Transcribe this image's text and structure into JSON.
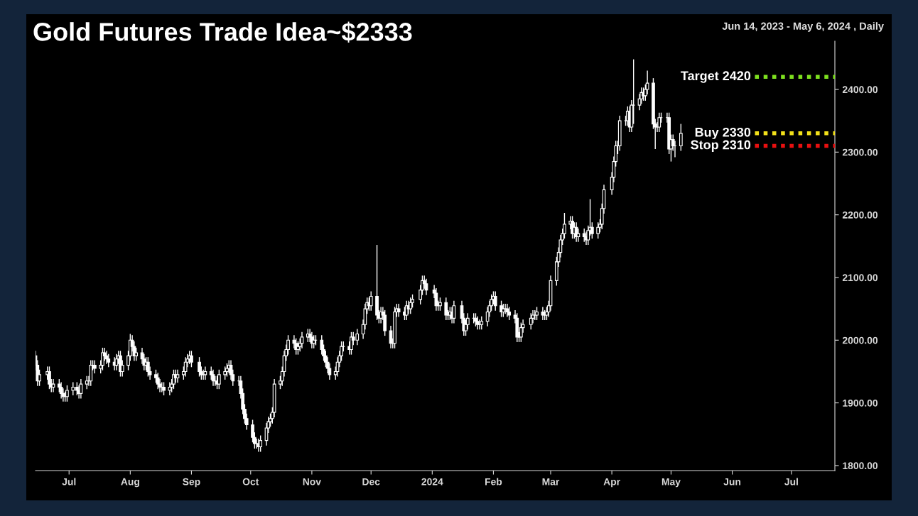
{
  "chart_data": {
    "type": "candlestick",
    "title": "Gold Futures Trade Idea~$2333",
    "subtitle": "Jun 14, 2023 - May 6, 2024 , Daily",
    "color": "#ffffff",
    "grid": false,
    "legend": false,
    "xlim": [
      "2023-06-14",
      "2024-07-23"
    ],
    "xticks": [
      {
        "value": "2023-07-01",
        "label": "Jul"
      },
      {
        "value": "2023-08-01",
        "label": "Aug"
      },
      {
        "value": "2023-09-01",
        "label": "Sep"
      },
      {
        "value": "2023-10-01",
        "label": "Oct"
      },
      {
        "value": "2023-11-01",
        "label": "Nov"
      },
      {
        "value": "2023-12-01",
        "label": "Dec"
      },
      {
        "value": "2024-01-01",
        "label": "2024"
      },
      {
        "value": "2024-02-01",
        "label": "Feb"
      },
      {
        "value": "2024-03-01",
        "label": "Mar"
      },
      {
        "value": "2024-04-01",
        "label": "Apr"
      },
      {
        "value": "2024-05-01",
        "label": "May"
      },
      {
        "value": "2024-06-01",
        "label": "Jun"
      },
      {
        "value": "2024-07-01",
        "label": "Jul"
      }
    ],
    "ylim": [
      1792,
      2477
    ],
    "yticks": [
      {
        "value": 1800,
        "label": "1800.00"
      },
      {
        "value": 1900,
        "label": "1900.00"
      },
      {
        "value": 2000,
        "label": "2000.00"
      },
      {
        "value": 2100,
        "label": "2100.00"
      },
      {
        "value": 2200,
        "label": "2200.00"
      },
      {
        "value": 2300,
        "label": "2300.00"
      },
      {
        "value": 2400,
        "label": "2400.00"
      }
    ],
    "ref_lines": [
      {
        "axis": "y",
        "value": 2420,
        "label": "Target 2420",
        "color": "#7ee01f",
        "line_style": "dotted"
      },
      {
        "axis": "y",
        "value": 2330,
        "label": "Buy 2330",
        "color": "#f2e01a",
        "line_style": "dotted"
      },
      {
        "axis": "y",
        "value": 2310,
        "label": "Stop 2310",
        "color": "#e81010",
        "line_style": "dotted"
      }
    ],
    "x": [
      "2023-06-14",
      "2023-06-15",
      "2023-06-16",
      "2023-06-20",
      "2023-06-21",
      "2023-06-22",
      "2023-06-23",
      "2023-06-26",
      "2023-06-27",
      "2023-06-28",
      "2023-06-29",
      "2023-06-30",
      "2023-07-03",
      "2023-07-05",
      "2023-07-06",
      "2023-07-07",
      "2023-07-10",
      "2023-07-11",
      "2023-07-12",
      "2023-07-13",
      "2023-07-14",
      "2023-07-17",
      "2023-07-18",
      "2023-07-19",
      "2023-07-20",
      "2023-07-21",
      "2023-07-24",
      "2023-07-25",
      "2023-07-26",
      "2023-07-27",
      "2023-07-28",
      "2023-07-31",
      "2023-08-01",
      "2023-08-02",
      "2023-08-03",
      "2023-08-04",
      "2023-08-07",
      "2023-08-08",
      "2023-08-09",
      "2023-08-10",
      "2023-08-11",
      "2023-08-14",
      "2023-08-15",
      "2023-08-16",
      "2023-08-17",
      "2023-08-18",
      "2023-08-21",
      "2023-08-22",
      "2023-08-23",
      "2023-08-24",
      "2023-08-25",
      "2023-08-28",
      "2023-08-29",
      "2023-08-30",
      "2023-08-31",
      "2023-09-01",
      "2023-09-05",
      "2023-09-06",
      "2023-09-07",
      "2023-09-08",
      "2023-09-11",
      "2023-09-12",
      "2023-09-13",
      "2023-09-14",
      "2023-09-15",
      "2023-09-18",
      "2023-09-19",
      "2023-09-20",
      "2023-09-21",
      "2023-09-22",
      "2023-09-25",
      "2023-09-26",
      "2023-09-27",
      "2023-09-28",
      "2023-09-29",
      "2023-10-02",
      "2023-10-03",
      "2023-10-04",
      "2023-10-05",
      "2023-10-06",
      "2023-10-09",
      "2023-10-10",
      "2023-10-11",
      "2023-10-12",
      "2023-10-13",
      "2023-10-16",
      "2023-10-17",
      "2023-10-18",
      "2023-10-19",
      "2023-10-20",
      "2023-10-23",
      "2023-10-24",
      "2023-10-25",
      "2023-10-26",
      "2023-10-27",
      "2023-10-30",
      "2023-10-31",
      "2023-11-01",
      "2023-11-02",
      "2023-11-03",
      "2023-11-06",
      "2023-11-07",
      "2023-11-08",
      "2023-11-09",
      "2023-11-10",
      "2023-11-13",
      "2023-11-14",
      "2023-11-15",
      "2023-11-16",
      "2023-11-17",
      "2023-11-20",
      "2023-11-21",
      "2023-11-22",
      "2023-11-24",
      "2023-11-27",
      "2023-11-28",
      "2023-11-29",
      "2023-11-30",
      "2023-12-01",
      "2023-12-04",
      "2023-12-05",
      "2023-12-06",
      "2023-12-07",
      "2023-12-08",
      "2023-12-11",
      "2023-12-12",
      "2023-12-13",
      "2023-12-14",
      "2023-12-15",
      "2023-12-18",
      "2023-12-19",
      "2023-12-20",
      "2023-12-21",
      "2023-12-22",
      "2023-12-26",
      "2023-12-27",
      "2023-12-28",
      "2023-12-29",
      "2024-01-02",
      "2024-01-03",
      "2024-01-04",
      "2024-01-05",
      "2024-01-08",
      "2024-01-09",
      "2024-01-10",
      "2024-01-11",
      "2024-01-12",
      "2024-01-16",
      "2024-01-17",
      "2024-01-18",
      "2024-01-19",
      "2024-01-22",
      "2024-01-23",
      "2024-01-24",
      "2024-01-25",
      "2024-01-26",
      "2024-01-29",
      "2024-01-30",
      "2024-01-31",
      "2024-02-01",
      "2024-02-02",
      "2024-02-05",
      "2024-02-06",
      "2024-02-07",
      "2024-02-08",
      "2024-02-09",
      "2024-02-12",
      "2024-02-13",
      "2024-02-14",
      "2024-02-15",
      "2024-02-16",
      "2024-02-20",
      "2024-02-21",
      "2024-02-22",
      "2024-02-23",
      "2024-02-26",
      "2024-02-27",
      "2024-02-28",
      "2024-02-29",
      "2024-03-01",
      "2024-03-04",
      "2024-03-05",
      "2024-03-06",
      "2024-03-07",
      "2024-03-08",
      "2024-03-11",
      "2024-03-12",
      "2024-03-13",
      "2024-03-14",
      "2024-03-15",
      "2024-03-18",
      "2024-03-19",
      "2024-03-20",
      "2024-03-21",
      "2024-03-22",
      "2024-03-25",
      "2024-03-26",
      "2024-03-27",
      "2024-03-28",
      "2024-04-01",
      "2024-04-02",
      "2024-04-03",
      "2024-04-04",
      "2024-04-05",
      "2024-04-08",
      "2024-04-09",
      "2024-04-10",
      "2024-04-11",
      "2024-04-12",
      "2024-04-15",
      "2024-04-16",
      "2024-04-17",
      "2024-04-18",
      "2024-04-19",
      "2024-04-22",
      "2024-04-23",
      "2024-04-24",
      "2024-04-25",
      "2024-04-26",
      "2024-04-29",
      "2024-04-30",
      "2024-05-01",
      "2024-05-02",
      "2024-05-03",
      "2024-05-06"
    ],
    "ohlc": [
      [
        1975,
        1983,
        1952,
        1960
      ],
      [
        1960,
        1968,
        1927,
        1935
      ],
      [
        1935,
        1953,
        1927,
        1945
      ],
      [
        1945,
        1958,
        1937,
        1950
      ],
      [
        1950,
        1958,
        1922,
        1930
      ],
      [
        1930,
        1938,
        1917,
        1925
      ],
      [
        1925,
        1938,
        1917,
        1930
      ],
      [
        1930,
        1938,
        1917,
        1925
      ],
      [
        1925,
        1933,
        1907,
        1915
      ],
      [
        1915,
        1923,
        1902,
        1910
      ],
      [
        1910,
        1918,
        1902,
        1910
      ],
      [
        1910,
        1928,
        1902,
        1920
      ],
      [
        1920,
        1933,
        1912,
        1925
      ],
      [
        1925,
        1933,
        1912,
        1920
      ],
      [
        1920,
        1928,
        1907,
        1915
      ],
      [
        1915,
        1938,
        1907,
        1930
      ],
      [
        1930,
        1943,
        1922,
        1935
      ],
      [
        1935,
        1943,
        1927,
        1935
      ],
      [
        1935,
        1968,
        1927,
        1960
      ],
      [
        1960,
        1968,
        1952,
        1960
      ],
      [
        1960,
        1968,
        1947,
        1955
      ],
      [
        1955,
        1968,
        1947,
        1960
      ],
      [
        1960,
        1988,
        1952,
        1980
      ],
      [
        1980,
        1988,
        1967,
        1975
      ],
      [
        1975,
        1983,
        1962,
        1970
      ],
      [
        1970,
        1978,
        1957,
        1965
      ],
      [
        1965,
        1973,
        1952,
        1960
      ],
      [
        1960,
        1978,
        1952,
        1970
      ],
      [
        1970,
        1983,
        1962,
        1975
      ],
      [
        1975,
        1983,
        1942,
        1950
      ],
      [
        1950,
        1968,
        1942,
        1960
      ],
      [
        1960,
        1983,
        1952,
        1975
      ],
      [
        1975,
        2010,
        1967,
        2000
      ],
      [
        2000,
        2008,
        1982,
        1990
      ],
      [
        1990,
        1998,
        1967,
        1975
      ],
      [
        1975,
        1988,
        1967,
        1980
      ],
      [
        1980,
        1988,
        1962,
        1970
      ],
      [
        1970,
        1978,
        1952,
        1960
      ],
      [
        1960,
        1973,
        1952,
        1965
      ],
      [
        1965,
        1973,
        1942,
        1950
      ],
      [
        1950,
        1958,
        1937,
        1945
      ],
      [
        1945,
        1953,
        1932,
        1940
      ],
      [
        1940,
        1948,
        1922,
        1930
      ],
      [
        1930,
        1938,
        1917,
        1925
      ],
      [
        1925,
        1933,
        1917,
        1925
      ],
      [
        1925,
        1933,
        1912,
        1920
      ],
      [
        1920,
        1933,
        1912,
        1925
      ],
      [
        1925,
        1938,
        1917,
        1930
      ],
      [
        1930,
        1953,
        1922,
        1945
      ],
      [
        1945,
        1953,
        1932,
        1940
      ],
      [
        1940,
        1953,
        1932,
        1945
      ],
      [
        1945,
        1958,
        1937,
        1950
      ],
      [
        1950,
        1973,
        1942,
        1965
      ],
      [
        1965,
        1978,
        1957,
        1970
      ],
      [
        1970,
        1983,
        1962,
        1975
      ],
      [
        1975,
        1983,
        1957,
        1965
      ],
      [
        1965,
        1973,
        1942,
        1950
      ],
      [
        1950,
        1958,
        1937,
        1945
      ],
      [
        1945,
        1953,
        1937,
        1945
      ],
      [
        1945,
        1958,
        1937,
        1950
      ],
      [
        1950,
        1958,
        1937,
        1945
      ],
      [
        1945,
        1953,
        1927,
        1935
      ],
      [
        1935,
        1943,
        1927,
        1935
      ],
      [
        1935,
        1943,
        1922,
        1930
      ],
      [
        1930,
        1953,
        1922,
        1945
      ],
      [
        1945,
        1958,
        1937,
        1950
      ],
      [
        1950,
        1963,
        1942,
        1955
      ],
      [
        1955,
        1968,
        1947,
        1960
      ],
      [
        1960,
        1968,
        1937,
        1945
      ],
      [
        1945,
        1953,
        1927,
        1935
      ],
      [
        1935,
        1943,
        1927,
        1935
      ],
      [
        1935,
        1943,
        1907,
        1915
      ],
      [
        1915,
        1923,
        1882,
        1890
      ],
      [
        1890,
        1898,
        1867,
        1875
      ],
      [
        1875,
        1883,
        1857,
        1865
      ],
      [
        1865,
        1873,
        1837,
        1845
      ],
      [
        1845,
        1853,
        1827,
        1835
      ],
      [
        1835,
        1843,
        1827,
        1835
      ],
      [
        1835,
        1843,
        1822,
        1830
      ],
      [
        1830,
        1848,
        1822,
        1840
      ],
      [
        1840,
        1868,
        1832,
        1860
      ],
      [
        1860,
        1878,
        1852,
        1870
      ],
      [
        1870,
        1883,
        1862,
        1875
      ],
      [
        1875,
        1893,
        1867,
        1885
      ],
      [
        1885,
        1938,
        1877,
        1930
      ],
      [
        1930,
        1943,
        1922,
        1935
      ],
      [
        1935,
        1958,
        1927,
        1950
      ],
      [
        1950,
        1983,
        1942,
        1975
      ],
      [
        1975,
        1993,
        1967,
        1985
      ],
      [
        1985,
        2008,
        1977,
        2000
      ],
      [
        2000,
        2008,
        1987,
        1995
      ],
      [
        1995,
        2003,
        1977,
        1985
      ],
      [
        1985,
        1998,
        1977,
        1990
      ],
      [
        1990,
        2003,
        1982,
        1995
      ],
      [
        1995,
        2013,
        1987,
        2005
      ],
      [
        2005,
        2018,
        1997,
        2010
      ],
      [
        2010,
        2018,
        1997,
        2005
      ],
      [
        2005,
        2013,
        1987,
        1995
      ],
      [
        1995,
        2008,
        1987,
        2000
      ],
      [
        2000,
        2008,
        1992,
        2000
      ],
      [
        2000,
        2008,
        1977,
        1985
      ],
      [
        1985,
        1993,
        1967,
        1975
      ],
      [
        1975,
        1983,
        1957,
        1965
      ],
      [
        1965,
        1973,
        1947,
        1955
      ],
      [
        1955,
        1963,
        1937,
        1945
      ],
      [
        1945,
        1958,
        1937,
        1950
      ],
      [
        1950,
        1973,
        1942,
        1965
      ],
      [
        1965,
        1983,
        1957,
        1975
      ],
      [
        1975,
        1998,
        1967,
        1990
      ],
      [
        1990,
        1998,
        1982,
        1990
      ],
      [
        1990,
        1998,
        1977,
        1985
      ],
      [
        1985,
        2013,
        1977,
        2005
      ],
      [
        2005,
        2013,
        1992,
        2000
      ],
      [
        2000,
        2018,
        1992,
        2010
      ],
      [
        2010,
        2033,
        2002,
        2025
      ],
      [
        2025,
        2058,
        2017,
        2050
      ],
      [
        2050,
        2068,
        2042,
        2060
      ],
      [
        2060,
        2068,
        2047,
        2055
      ],
      [
        2055,
        2078,
        2047,
        2070
      ],
      [
        2070,
        2152,
        2032,
        2040
      ],
      [
        2040,
        2048,
        2027,
        2035
      ],
      [
        2035,
        2053,
        2027,
        2045
      ],
      [
        2045,
        2053,
        2032,
        2040
      ],
      [
        2040,
        2048,
        2007,
        2015
      ],
      [
        2015,
        2023,
        1987,
        1995
      ],
      [
        1995,
        2003,
        1987,
        1995
      ],
      [
        1995,
        2053,
        1987,
        2045
      ],
      [
        2045,
        2058,
        2037,
        2050
      ],
      [
        2050,
        2058,
        2037,
        2045
      ],
      [
        2045,
        2053,
        2032,
        2040
      ],
      [
        2040,
        2063,
        2032,
        2055
      ],
      [
        2055,
        2063,
        2042,
        2050
      ],
      [
        2050,
        2068,
        2042,
        2060
      ],
      [
        2060,
        2073,
        2052,
        2065
      ],
      [
        2065,
        2088,
        2057,
        2080
      ],
      [
        2080,
        2103,
        2072,
        2095
      ],
      [
        2095,
        2103,
        2082,
        2090
      ],
      [
        2090,
        2098,
        2072,
        2080
      ],
      [
        2080,
        2088,
        2067,
        2075
      ],
      [
        2075,
        2083,
        2047,
        2055
      ],
      [
        2055,
        2063,
        2047,
        2055
      ],
      [
        2055,
        2068,
        2047,
        2060
      ],
      [
        2060,
        2068,
        2032,
        2040
      ],
      [
        2040,
        2048,
        2032,
        2040
      ],
      [
        2040,
        2053,
        2032,
        2045
      ],
      [
        2045,
        2053,
        2027,
        2035
      ],
      [
        2035,
        2063,
        2027,
        2055
      ],
      [
        2055,
        2063,
        2027,
        2035
      ],
      [
        2035,
        2043,
        2007,
        2015
      ],
      [
        2015,
        2033,
        2007,
        2025
      ],
      [
        2025,
        2043,
        2017,
        2035
      ],
      [
        2035,
        2043,
        2027,
        2035
      ],
      [
        2035,
        2043,
        2022,
        2030
      ],
      [
        2030,
        2038,
        2017,
        2025
      ],
      [
        2025,
        2033,
        2017,
        2025
      ],
      [
        2025,
        2038,
        2017,
        2030
      ],
      [
        2030,
        2053,
        2022,
        2045
      ],
      [
        2045,
        2063,
        2037,
        2055
      ],
      [
        2055,
        2073,
        2047,
        2065
      ],
      [
        2065,
        2078,
        2057,
        2070
      ],
      [
        2070,
        2078,
        2047,
        2055
      ],
      [
        2055,
        2063,
        2037,
        2045
      ],
      [
        2045,
        2058,
        2037,
        2050
      ],
      [
        2050,
        2058,
        2042,
        2050
      ],
      [
        2050,
        2058,
        2037,
        2045
      ],
      [
        2045,
        2053,
        2032,
        2040
      ],
      [
        2040,
        2048,
        2027,
        2035
      ],
      [
        2035,
        2043,
        1997,
        2005
      ],
      [
        2005,
        2013,
        1997,
        2005
      ],
      [
        2005,
        2028,
        1997,
        2020
      ],
      [
        2020,
        2033,
        2012,
        2025
      ],
      [
        2025,
        2043,
        2017,
        2035
      ],
      [
        2035,
        2048,
        2027,
        2040
      ],
      [
        2040,
        2048,
        2032,
        2040
      ],
      [
        2040,
        2053,
        2032,
        2045
      ],
      [
        2045,
        2053,
        2032,
        2040
      ],
      [
        2040,
        2048,
        2032,
        2040
      ],
      [
        2040,
        2053,
        2032,
        2045
      ],
      [
        2045,
        2063,
        2037,
        2055
      ],
      [
        2055,
        2103,
        2047,
        2095
      ],
      [
        2095,
        2133,
        2087,
        2125
      ],
      [
        2125,
        2148,
        2117,
        2140
      ],
      [
        2140,
        2168,
        2132,
        2160
      ],
      [
        2160,
        2178,
        2152,
        2170
      ],
      [
        2170,
        2203,
        2162,
        2185
      ],
      [
        2185,
        2198,
        2177,
        2190
      ],
      [
        2190,
        2198,
        2162,
        2170
      ],
      [
        2170,
        2188,
        2162,
        2180
      ],
      [
        2180,
        2188,
        2157,
        2165
      ],
      [
        2165,
        2178,
        2157,
        2170
      ],
      [
        2170,
        2178,
        2157,
        2165
      ],
      [
        2165,
        2173,
        2152,
        2160
      ],
      [
        2160,
        2183,
        2152,
        2175
      ],
      [
        2175,
        2225,
        2167,
        2180
      ],
      [
        2180,
        2188,
        2162,
        2170
      ],
      [
        2170,
        2188,
        2162,
        2180
      ],
      [
        2180,
        2193,
        2172,
        2185
      ],
      [
        2185,
        2218,
        2177,
        2210
      ],
      [
        2210,
        2248,
        2202,
        2240
      ],
      [
        2240,
        2268,
        2232,
        2260
      ],
      [
        2260,
        2293,
        2252,
        2285
      ],
      [
        2285,
        2318,
        2277,
        2310
      ],
      [
        2310,
        2318,
        2297,
        2310
      ],
      [
        2310,
        2358,
        2302,
        2350
      ],
      [
        2350,
        2358,
        2342,
        2350
      ],
      [
        2350,
        2373,
        2342,
        2365
      ],
      [
        2365,
        2373,
        2332,
        2340
      ],
      [
        2340,
        2383,
        2332,
        2375
      ],
      [
        2375,
        2448,
        2345,
        2375
      ],
      [
        2375,
        2393,
        2367,
        2385
      ],
      [
        2385,
        2403,
        2377,
        2395
      ],
      [
        2395,
        2403,
        2382,
        2390
      ],
      [
        2390,
        2408,
        2382,
        2400
      ],
      [
        2400,
        2430,
        2392,
        2410
      ],
      [
        2410,
        2418,
        2337,
        2345
      ],
      [
        2345,
        2353,
        2305,
        2340
      ],
      [
        2340,
        2348,
        2332,
        2340
      ],
      [
        2340,
        2363,
        2332,
        2355
      ],
      [
        2355,
        2363,
        2347,
        2355
      ],
      [
        2355,
        2363,
        2347,
        2355
      ],
      [
        2355,
        2363,
        2297,
        2305
      ],
      [
        2305,
        2328,
        2285,
        2320
      ],
      [
        2320,
        2328,
        2302,
        2310
      ],
      [
        2310,
        2318,
        2292,
        2310
      ],
      [
        2310,
        2345,
        2302,
        2330
      ]
    ]
  }
}
